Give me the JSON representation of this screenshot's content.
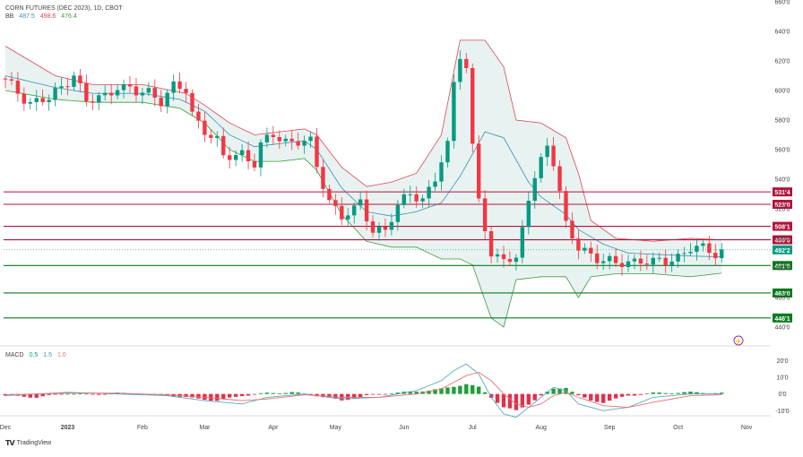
{
  "header": {
    "symbol": "CORN FUTURES (DEC 2023), 1D, CBOT",
    "bb_label": "BB",
    "bb_mid": "487.5",
    "bb_upper": "498.6",
    "bb_lower": "476.4",
    "macd_label": "MACD",
    "macd_p1": "0.5",
    "macd_p2": "1.5",
    "macd_p3": "1.0"
  },
  "watermark": "TradingView",
  "colors": {
    "up": "#089981",
    "down": "#f23645",
    "bb_upper": "#e0455a",
    "bb_lower": "#3c9c3c",
    "bb_mid": "#3d8fb0",
    "bb_fill": "#e6f2ef",
    "resist": "#b3123b",
    "support": "#0b7a1e",
    "last": "#089981",
    "macd_line": "#5aa9c8",
    "signal_line": "#e57373"
  },
  "icons": {
    "watermark_logo": "tradingview-logo-icon",
    "alert": "lightning-icon"
  },
  "chart_data": {
    "type": "candlestick",
    "title": "CORN FUTURES (DEC 2023), 1D, CBOT",
    "ylim": [
      426,
      660
    ],
    "y_ticks": [
      440,
      460,
      480,
      500,
      520,
      540,
      560,
      580,
      600,
      620,
      640,
      660
    ],
    "y_tick_labels": [
      "440'0",
      "460'0",
      "480'0",
      "500'0",
      "520'0",
      "540'0",
      "560'0",
      "580'0",
      "600'0",
      "620'0",
      "640'0",
      "660'0"
    ],
    "x_ticks": [
      {
        "label": "Dec",
        "bar": 0
      },
      {
        "label": "2023",
        "bar": 10
      },
      {
        "label": "Feb",
        "bar": 22
      },
      {
        "label": "Mar",
        "bar": 32
      },
      {
        "label": "Apr",
        "bar": 43
      },
      {
        "label": "May",
        "bar": 53
      },
      {
        "label": "Jun",
        "bar": 64
      },
      {
        "label": "Jul",
        "bar": 75
      },
      {
        "label": "Aug",
        "bar": 86
      },
      {
        "label": "Sep",
        "bar": 97
      },
      {
        "label": "Oct",
        "bar": 108
      },
      {
        "label": "Nov",
        "bar": 119
      }
    ],
    "x_bar_count": 125,
    "closes_key": [
      [
        0,
        606
      ],
      [
        4,
        592
      ],
      [
        7,
        594
      ],
      [
        9,
        602
      ],
      [
        11,
        612
      ],
      [
        13,
        592
      ],
      [
        16,
        596
      ],
      [
        18,
        604
      ],
      [
        21,
        598
      ],
      [
        23,
        599
      ],
      [
        25,
        594
      ],
      [
        27,
        602
      ],
      [
        29,
        600
      ],
      [
        30,
        584
      ],
      [
        32,
        574
      ],
      [
        34,
        565
      ],
      [
        35,
        554
      ],
      [
        38,
        558
      ],
      [
        40,
        551
      ],
      [
        41,
        562
      ],
      [
        43,
        570
      ],
      [
        45,
        566
      ],
      [
        47,
        566
      ],
      [
        49,
        564
      ],
      [
        50,
        548
      ],
      [
        52,
        526
      ],
      [
        54,
        515
      ],
      [
        56,
        518
      ],
      [
        57,
        524
      ],
      [
        59,
        506
      ],
      [
        61,
        506
      ],
      [
        63,
        520
      ],
      [
        65,
        532
      ],
      [
        67,
        526
      ],
      [
        69,
        540
      ],
      [
        71,
        562
      ],
      [
        72,
        606
      ],
      [
        73,
        626
      ],
      [
        74,
        616
      ],
      [
        75,
        561
      ],
      [
        76,
        527
      ],
      [
        78,
        485
      ],
      [
        80,
        490
      ],
      [
        82,
        484
      ],
      [
        84,
        527
      ],
      [
        85,
        540
      ],
      [
        87,
        565
      ],
      [
        88,
        553
      ],
      [
        90,
        508
      ],
      [
        92,
        493
      ],
      [
        94,
        490
      ],
      [
        96,
        485
      ],
      [
        98,
        482
      ],
      [
        100,
        484
      ],
      [
        102,
        486
      ],
      [
        104,
        483
      ],
      [
        106,
        484
      ],
      [
        108,
        488
      ],
      [
        110,
        494
      ],
      [
        112,
        492
      ],
      [
        114,
        490
      ],
      [
        115,
        492
      ]
    ],
    "bollinger": {
      "period": 20,
      "upper_last": 498.6,
      "middle_last": 487.5,
      "lower_last": 476.4,
      "upper_key": [
        [
          0,
          630
        ],
        [
          8,
          610
        ],
        [
          14,
          604
        ],
        [
          22,
          604
        ],
        [
          29,
          598
        ],
        [
          32,
          590
        ],
        [
          36,
          578
        ],
        [
          40,
          570
        ],
        [
          44,
          572
        ],
        [
          48,
          574
        ],
        [
          50,
          570
        ],
        [
          54,
          548
        ],
        [
          58,
          535
        ],
        [
          62,
          538
        ],
        [
          66,
          544
        ],
        [
          70,
          570
        ],
        [
          73,
          634
        ],
        [
          77,
          634
        ],
        [
          80,
          616
        ],
        [
          82,
          580
        ],
        [
          86,
          578
        ],
        [
          90,
          568
        ],
        [
          92,
          544
        ],
        [
          94,
          512
        ],
        [
          98,
          500
        ],
        [
          104,
          498
        ],
        [
          110,
          500
        ],
        [
          115,
          499
        ]
      ],
      "middle_key": [
        [
          0,
          610
        ],
        [
          8,
          602
        ],
        [
          14,
          598
        ],
        [
          22,
          598
        ],
        [
          28,
          594
        ],
        [
          32,
          586
        ],
        [
          36,
          570
        ],
        [
          40,
          562
        ],
        [
          44,
          564
        ],
        [
          48,
          566
        ],
        [
          50,
          560
        ],
        [
          54,
          534
        ],
        [
          58,
          518
        ],
        [
          62,
          515
        ],
        [
          66,
          518
        ],
        [
          70,
          524
        ],
        [
          73,
          542
        ],
        [
          77,
          572
        ],
        [
          80,
          568
        ],
        [
          84,
          538
        ],
        [
          86,
          528
        ],
        [
          90,
          516
        ],
        [
          92,
          506
        ],
        [
          96,
          496
        ],
        [
          100,
          490
        ],
        [
          105,
          489
        ],
        [
          110,
          488
        ],
        [
          115,
          487.5
        ]
      ],
      "lower_key": [
        [
          0,
          600
        ],
        [
          8,
          594
        ],
        [
          14,
          592
        ],
        [
          22,
          592
        ],
        [
          28,
          588
        ],
        [
          32,
          578
        ],
        [
          36,
          560
        ],
        [
          40,
          552
        ],
        [
          44,
          552
        ],
        [
          48,
          554
        ],
        [
          50,
          546
        ],
        [
          54,
          516
        ],
        [
          58,
          498
        ],
        [
          62,
          494
        ],
        [
          66,
          494
        ],
        [
          70,
          486
        ],
        [
          73,
          486
        ],
        [
          75,
          482
        ],
        [
          78,
          446
        ],
        [
          80,
          440
        ],
        [
          82,
          472
        ],
        [
          86,
          474
        ],
        [
          90,
          474
        ],
        [
          92,
          460
        ],
        [
          94,
          474
        ],
        [
          98,
          476
        ],
        [
          104,
          476
        ],
        [
          110,
          474
        ],
        [
          115,
          476.4
        ]
      ]
    },
    "horizontal_levels": [
      {
        "value": 531.4,
        "label": "531'4",
        "kind": "resistance"
      },
      {
        "value": 523.0,
        "label": "523'0",
        "kind": "resistance"
      },
      {
        "value": 508.1,
        "label": "508'1",
        "kind": "resistance"
      },
      {
        "value": 499.0,
        "label": "499'0",
        "kind": "resistance"
      },
      {
        "value": 481.6,
        "label": "481'6",
        "kind": "support"
      },
      {
        "value": 463.0,
        "label": "463'0",
        "kind": "support"
      },
      {
        "value": 446.1,
        "label": "446'1",
        "kind": "support"
      }
    ],
    "last_price": {
      "value": 492.2,
      "label": "492'2"
    },
    "macd": {
      "ylim": [
        -12,
        24
      ],
      "y_ticks": [
        20,
        10,
        0,
        -10
      ],
      "y_tick_labels": [
        "20'0",
        "10'0",
        "0'0",
        "-10'0"
      ],
      "hist_key": [
        [
          0,
          -1
        ],
        [
          5,
          -2
        ],
        [
          10,
          0.5
        ],
        [
          14,
          -0.5
        ],
        [
          18,
          0.5
        ],
        [
          22,
          -0.3
        ],
        [
          28,
          -1.5
        ],
        [
          30,
          -2.5
        ],
        [
          34,
          -4
        ],
        [
          38,
          -1
        ],
        [
          42,
          0.5
        ],
        [
          46,
          1
        ],
        [
          50,
          -1
        ],
        [
          54,
          -4
        ],
        [
          58,
          -1
        ],
        [
          62,
          0.5
        ],
        [
          66,
          1.5
        ],
        [
          70,
          3
        ],
        [
          74,
          6
        ],
        [
          76,
          4
        ],
        [
          78,
          -2
        ],
        [
          80,
          -8
        ],
        [
          82,
          -10
        ],
        [
          84,
          -6
        ],
        [
          86,
          -1
        ],
        [
          88,
          3
        ],
        [
          90,
          4
        ],
        [
          92,
          -1
        ],
        [
          94,
          -4
        ],
        [
          96,
          -5
        ],
        [
          98,
          -3
        ],
        [
          100,
          -1
        ],
        [
          104,
          0.5
        ],
        [
          110,
          1
        ],
        [
          115,
          0.5
        ]
      ],
      "macd_key": [
        [
          0,
          -1
        ],
        [
          10,
          1
        ],
        [
          18,
          0
        ],
        [
          26,
          -1
        ],
        [
          32,
          -4
        ],
        [
          38,
          -6
        ],
        [
          42,
          -2
        ],
        [
          48,
          0
        ],
        [
          54,
          -3
        ],
        [
          60,
          -2
        ],
        [
          66,
          2
        ],
        [
          70,
          8
        ],
        [
          72,
          14
        ],
        [
          74,
          18
        ],
        [
          76,
          12
        ],
        [
          78,
          -2
        ],
        [
          80,
          -12
        ],
        [
          82,
          -14
        ],
        [
          84,
          -8
        ],
        [
          86,
          -2
        ],
        [
          88,
          4
        ],
        [
          90,
          2
        ],
        [
          92,
          -6
        ],
        [
          96,
          -10
        ],
        [
          100,
          -8
        ],
        [
          104,
          -2
        ],
        [
          110,
          0
        ],
        [
          115,
          0
        ]
      ],
      "signal_key": [
        [
          0,
          -0.5
        ],
        [
          10,
          0.5
        ],
        [
          18,
          0.5
        ],
        [
          26,
          -0.5
        ],
        [
          32,
          -2
        ],
        [
          38,
          -4
        ],
        [
          42,
          -3
        ],
        [
          48,
          -0.5
        ],
        [
          54,
          -2
        ],
        [
          60,
          -2
        ],
        [
          66,
          0
        ],
        [
          70,
          3
        ],
        [
          72,
          7
        ],
        [
          74,
          11
        ],
        [
          76,
          13
        ],
        [
          78,
          8
        ],
        [
          80,
          0
        ],
        [
          82,
          -6
        ],
        [
          84,
          -8
        ],
        [
          86,
          -6
        ],
        [
          88,
          -1
        ],
        [
          90,
          1
        ],
        [
          92,
          -2
        ],
        [
          96,
          -7
        ],
        [
          100,
          -8
        ],
        [
          104,
          -5
        ],
        [
          110,
          -1
        ],
        [
          115,
          -0.5
        ]
      ]
    }
  }
}
